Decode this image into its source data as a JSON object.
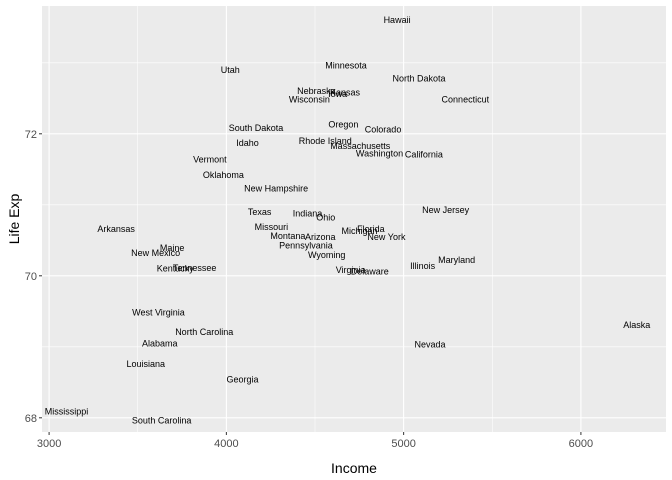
{
  "chart_data": {
    "type": "scatter",
    "xlabel": "Income",
    "ylabel": "Life Exp",
    "xlim": [
      2960,
      6480
    ],
    "ylim": [
      67.8,
      73.8
    ],
    "x_ticks": [
      3000,
      4000,
      5000,
      6000
    ],
    "y_ticks": [
      68,
      70,
      72
    ],
    "x_minor": [
      3500,
      4500,
      5500
    ],
    "y_minor": [
      69,
      71,
      73
    ],
    "grid": true,
    "points": [
      {
        "label": "Alabama",
        "x": 3624,
        "y": 69.05
      },
      {
        "label": "Alaska",
        "x": 6315,
        "y": 69.31
      },
      {
        "label": "Arizona",
        "x": 4530,
        "y": 70.55
      },
      {
        "label": "Arkansas",
        "x": 3378,
        "y": 70.66
      },
      {
        "label": "California",
        "x": 5114,
        "y": 71.71
      },
      {
        "label": "Colorado",
        "x": 4884,
        "y": 72.06
      },
      {
        "label": "Connecticut",
        "x": 5348,
        "y": 72.48
      },
      {
        "label": "Delaware",
        "x": 4809,
        "y": 70.06
      },
      {
        "label": "Florida",
        "x": 4815,
        "y": 70.66
      },
      {
        "label": "Georgia",
        "x": 4091,
        "y": 68.54
      },
      {
        "label": "Hawaii",
        "x": 4963,
        "y": 73.6
      },
      {
        "label": "Idaho",
        "x": 4119,
        "y": 71.87
      },
      {
        "label": "Illinois",
        "x": 5107,
        "y": 70.14
      },
      {
        "label": "Indiana",
        "x": 4458,
        "y": 70.88
      },
      {
        "label": "Iowa",
        "x": 4628,
        "y": 72.56
      },
      {
        "label": "Kansas",
        "x": 4669,
        "y": 72.58
      },
      {
        "label": "Kentucky",
        "x": 3712,
        "y": 70.1
      },
      {
        "label": "Louisiana",
        "x": 3545,
        "y": 68.76
      },
      {
        "label": "Maine",
        "x": 3694,
        "y": 70.39
      },
      {
        "label": "Maryland",
        "x": 5299,
        "y": 70.22
      },
      {
        "label": "Massachusetts",
        "x": 4755,
        "y": 71.83
      },
      {
        "label": "Michigan",
        "x": 4751,
        "y": 70.63
      },
      {
        "label": "Minnesota",
        "x": 4675,
        "y": 72.96
      },
      {
        "label": "Mississippi",
        "x": 3098,
        "y": 68.09
      },
      {
        "label": "Missouri",
        "x": 4254,
        "y": 70.69
      },
      {
        "label": "Montana",
        "x": 4347,
        "y": 70.56
      },
      {
        "label": "Nebraska",
        "x": 4508,
        "y": 72.6
      },
      {
        "label": "Nevada",
        "x": 5149,
        "y": 69.03
      },
      {
        "label": "New Hampshire",
        "x": 4281,
        "y": 71.23
      },
      {
        "label": "New Jersey",
        "x": 5237,
        "y": 70.93
      },
      {
        "label": "New Mexico",
        "x": 3601,
        "y": 70.32
      },
      {
        "label": "New York",
        "x": 4903,
        "y": 70.55
      },
      {
        "label": "North Carolina",
        "x": 3875,
        "y": 69.21
      },
      {
        "label": "North Dakota",
        "x": 5087,
        "y": 72.78
      },
      {
        "label": "Ohio",
        "x": 4561,
        "y": 70.82
      },
      {
        "label": "Oklahoma",
        "x": 3983,
        "y": 71.42
      },
      {
        "label": "Oregon",
        "x": 4660,
        "y": 72.13
      },
      {
        "label": "Pennsylvania",
        "x": 4449,
        "y": 70.43
      },
      {
        "label": "Rhode Island",
        "x": 4558,
        "y": 71.9
      },
      {
        "label": "South Carolina",
        "x": 3635,
        "y": 67.96
      },
      {
        "label": "South Dakota",
        "x": 4167,
        "y": 72.08
      },
      {
        "label": "Tennessee",
        "x": 3821,
        "y": 70.11
      },
      {
        "label": "Texas",
        "x": 4188,
        "y": 70.9
      },
      {
        "label": "Utah",
        "x": 4022,
        "y": 72.9
      },
      {
        "label": "Vermont",
        "x": 3907,
        "y": 71.64
      },
      {
        "label": "Virginia",
        "x": 4701,
        "y": 70.08
      },
      {
        "label": "Washington",
        "x": 4864,
        "y": 71.72
      },
      {
        "label": "West Virginia",
        "x": 3617,
        "y": 69.48
      },
      {
        "label": "Wisconsin",
        "x": 4468,
        "y": 72.48
      },
      {
        "label": "Wyoming",
        "x": 4566,
        "y": 70.29
      }
    ]
  }
}
